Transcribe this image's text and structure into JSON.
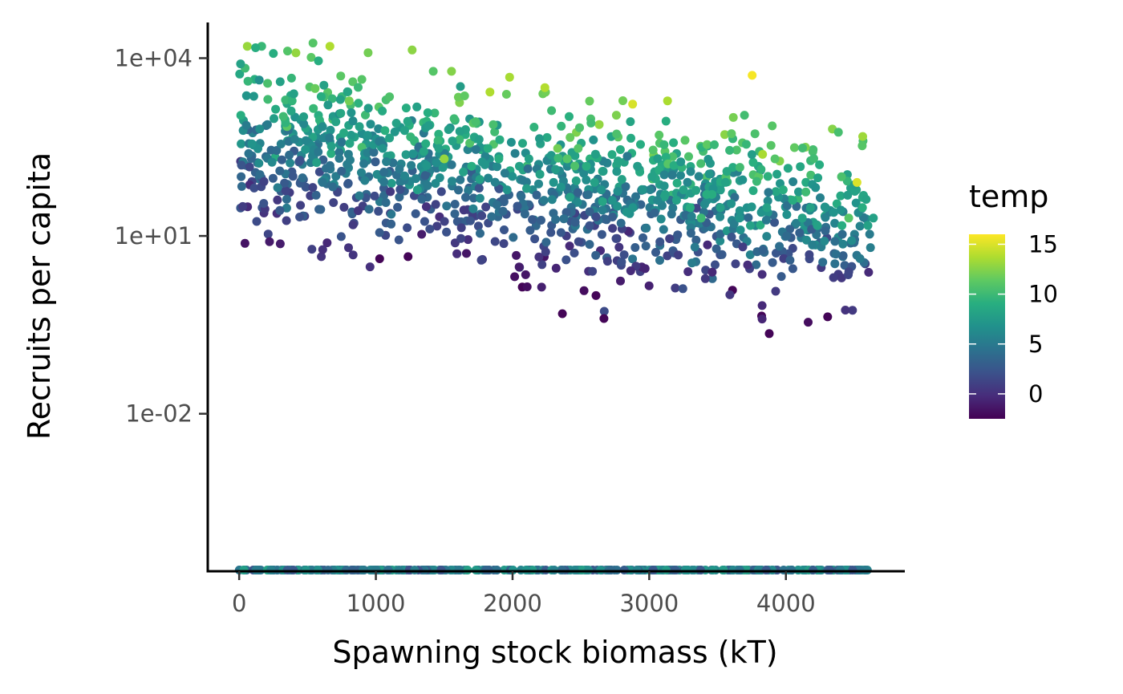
{
  "chart_data": {
    "type": "scatter",
    "xlabel": "Spawning stock biomass (kT)",
    "ylabel": "Recruits per capita",
    "xlim": [
      -230,
      4870
    ],
    "x_ticks": [
      0,
      1000,
      2000,
      3000,
      4000
    ],
    "x_tick_labels": [
      "0",
      "1000",
      "2000",
      "3000",
      "4000"
    ],
    "y_scale": "log10",
    "ylim": [
      2.2e-05,
      40000
    ],
    "y_ticks": [
      10000,
      10,
      0.01
    ],
    "y_tick_labels": [
      "1e+04",
      "1e+01",
      "1e-02"
    ],
    "grid": false,
    "color_variable": "temp",
    "colormap": "viridis",
    "color_range": [
      -2.5,
      16
    ],
    "legend": {
      "title": "temp",
      "position": "right",
      "ticks": [
        15,
        10,
        5,
        0
      ],
      "tick_labels": [
        "15",
        "10",
        "5",
        "0"
      ]
    },
    "n_points": 1500,
    "floor_value_note": "zero-recruitment observations plotted at the bottom axis limit",
    "points": {
      "x": [
        10,
        120,
        250,
        300,
        400,
        540,
        580,
        620,
        740,
        820,
        880,
        940,
        1050,
        1100,
        1150,
        1210,
        1300,
        1380,
        1420,
        1460,
        1500,
        1560,
        1640,
        1700,
        1760,
        1820,
        1900,
        1960,
        2050,
        2120,
        2200,
        2230,
        2300,
        2330,
        2400,
        2420,
        2480,
        2540,
        2600,
        2650,
        2730,
        2800,
        2880,
        2950,
        3020,
        3060,
        3110,
        3200,
        3250,
        3300,
        3380,
        3420,
        3460,
        3520,
        3600,
        3660,
        3740,
        3820,
        3860,
        3920,
        3980,
        4050,
        4120,
        4180,
        4230,
        4290,
        4350,
        4410,
        4460,
        4520,
        4560,
        4600,
        4640
      ],
      "y": [
        8000,
        15000,
        12000,
        4000,
        2500,
        18000,
        9000,
        3500,
        2000,
        1200,
        700,
        500,
        300,
        450,
        800,
        600,
        1500,
        1200,
        6000,
        300,
        200,
        400,
        120,
        150,
        90,
        300,
        200,
        60,
        150,
        200,
        110,
        40,
        80,
        300,
        200,
        45,
        300,
        150,
        80,
        60,
        40,
        90,
        30,
        60,
        100,
        40,
        70,
        40,
        60,
        30,
        20,
        50,
        50,
        30,
        35,
        20,
        15,
        25,
        30,
        200,
        60,
        40,
        20,
        30,
        15,
        30,
        25,
        15,
        20,
        80,
        30,
        15,
        20
      ],
      "temp": [
        8,
        9,
        9,
        8,
        8,
        11,
        9,
        8,
        8,
        7,
        8,
        7,
        7,
        8,
        8,
        8,
        8,
        9,
        11,
        8,
        13,
        8,
        8,
        9,
        8,
        9,
        9,
        7,
        8,
        8,
        8,
        5,
        7,
        12,
        11,
        8,
        11,
        9,
        8,
        7,
        7,
        8,
        7,
        7,
        8,
        6,
        7,
        8,
        8,
        9,
        10,
        9,
        9,
        8,
        7,
        7,
        8,
        7,
        8,
        11,
        9,
        9,
        8,
        8,
        8,
        7,
        7,
        9,
        11,
        15,
        9,
        8,
        8
      ]
    }
  }
}
